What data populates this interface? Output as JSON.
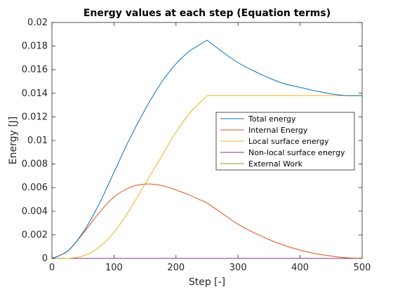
{
  "chart_data": {
    "type": "line",
    "title": "Energy values at each step (Equation terms)",
    "xlabel": "Step [-]",
    "ylabel": "Energy [J]",
    "xlim": [
      0,
      500
    ],
    "ylim": [
      0,
      0.02
    ],
    "xticks": [
      0,
      100,
      200,
      300,
      400,
      500
    ],
    "yticks": [
      0,
      0.002,
      0.004,
      0.006,
      0.008,
      0.01,
      0.012,
      0.014,
      0.016,
      0.018,
      0.02
    ],
    "xtick_labels": [
      "0",
      "100",
      "200",
      "300",
      "400",
      "500"
    ],
    "ytick_labels": [
      "0",
      "0.002",
      "0.004",
      "0.006",
      "0.008",
      "0.01",
      "0.012",
      "0.014",
      "0.016",
      "0.018",
      "0.02"
    ],
    "grid": false,
    "legend_position": "center-right",
    "x": [
      0,
      25,
      50,
      75,
      100,
      125,
      150,
      175,
      200,
      225,
      250,
      275,
      300,
      325,
      350,
      375,
      400,
      425,
      450,
      475,
      500
    ],
    "series": [
      {
        "name": "Total energy",
        "color": "#0072BD",
        "values": [
          0,
          0.0006,
          0.0022,
          0.0045,
          0.0073,
          0.0101,
          0.0126,
          0.0148,
          0.0165,
          0.0177,
          0.0185,
          0.0175,
          0.0166,
          0.0159,
          0.0153,
          0.0148,
          0.0145,
          0.0142,
          0.01395,
          0.0138,
          0.0138
        ]
      },
      {
        "name": "Internal Energy",
        "color": "#D95319",
        "values": [
          0,
          0.0006,
          0.0021,
          0.0038,
          0.0052,
          0.006,
          0.0063,
          0.0062,
          0.0058,
          0.0053,
          0.0047,
          0.0038,
          0.0029,
          0.0022,
          0.0016,
          0.0011,
          0.0007,
          0.0004,
          0.0002,
          5e-05,
          0
        ]
      },
      {
        "name": "Local surface energy",
        "color": "#EDB120",
        "values": [
          0,
          0,
          0.0002,
          0.0009,
          0.0022,
          0.0041,
          0.0063,
          0.0085,
          0.0107,
          0.0125,
          0.0138,
          0.0138,
          0.0138,
          0.0138,
          0.0138,
          0.0138,
          0.0138,
          0.0138,
          0.0138,
          0.0138,
          0.0138
        ]
      },
      {
        "name": "Non-local surface energy",
        "color": "#7E2F8E",
        "values": [
          0,
          0,
          0,
          0,
          0,
          0,
          0,
          0,
          0,
          0,
          0,
          0,
          0,
          0,
          0,
          0,
          0,
          0,
          0,
          0,
          0
        ]
      },
      {
        "name": "External Work",
        "color": "#77AC30",
        "values": [
          0,
          0,
          0,
          0,
          0,
          0,
          0,
          0,
          0,
          0,
          0,
          0,
          0,
          0,
          0,
          0,
          0,
          0,
          0,
          0,
          0
        ]
      }
    ]
  }
}
